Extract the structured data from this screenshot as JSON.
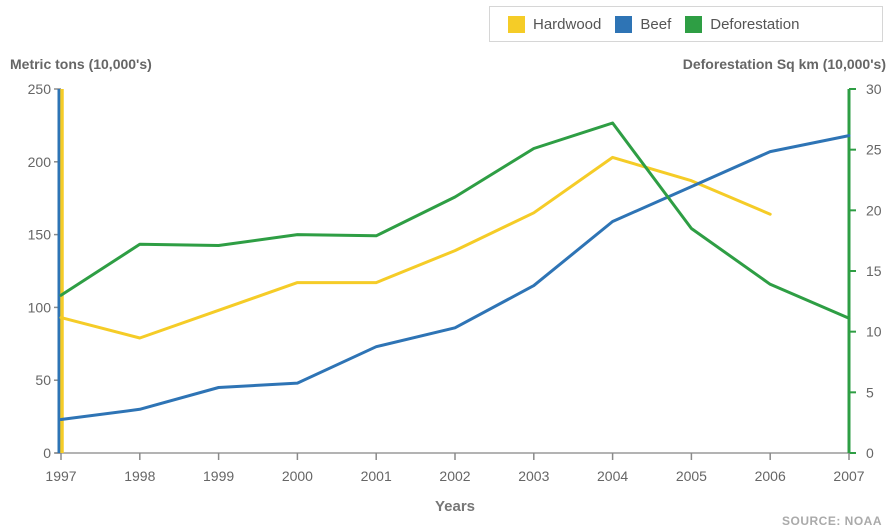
{
  "chart_data": {
    "type": "line",
    "x": [
      1997,
      1998,
      1999,
      2000,
      2001,
      2002,
      2003,
      2004,
      2005,
      2006,
      2007
    ],
    "xlabel": "Years",
    "ylabel_left": "Metric tons (10,000's)",
    "ylabel_right": "Deforestation Sq km (10,000's)",
    "ylim_left": [
      0,
      250
    ],
    "ylim_right": [
      0,
      30
    ],
    "yticks_left": [
      0,
      50,
      100,
      150,
      200,
      250
    ],
    "yticks_right": [
      0,
      5,
      10,
      15,
      20,
      25,
      30
    ],
    "series": [
      {
        "name": "Hardwood",
        "axis": "left",
        "color": "#f5cc27",
        "values": [
          93,
          79,
          98,
          117,
          117,
          139,
          165,
          203,
          187,
          164,
          null
        ]
      },
      {
        "name": "Beef",
        "axis": "left",
        "color": "#2e74b5",
        "values": [
          23,
          30,
          45,
          48,
          73,
          86,
          115,
          159,
          183,
          207,
          218
        ]
      },
      {
        "name": "Deforestation",
        "axis": "right",
        "color": "#2e9e44",
        "values": [
          13.0,
          17.2,
          17.1,
          18.0,
          17.9,
          21.1,
          25.1,
          27.2,
          18.5,
          13.9,
          11.1
        ]
      }
    ],
    "legend_position": "top-right",
    "grid": false
  },
  "source": "SOURCE: NOAA"
}
